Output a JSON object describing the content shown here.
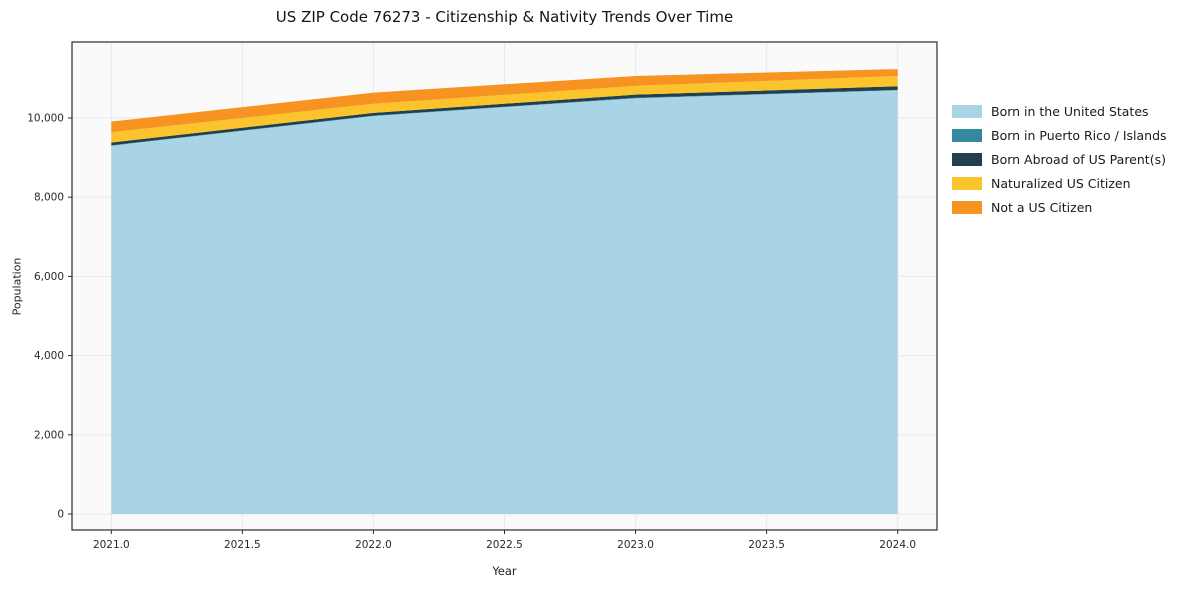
{
  "figure": {
    "title": "US ZIP Code 76273 - Citizenship & Nativity Trends Over Time",
    "xlabel": "Year",
    "ylabel": "Population"
  },
  "chart_data": {
    "type": "area",
    "stacked": true,
    "title": "US ZIP Code 76273 - Citizenship & Nativity Trends Over Time",
    "xlabel": "Year",
    "ylabel": "Population",
    "x": [
      2021,
      2022,
      2023,
      2024
    ],
    "series": [
      {
        "name": "Born in the United States",
        "color": "#a9d4e5",
        "values": [
          9300,
          10050,
          10500,
          10700
        ]
      },
      {
        "name": "Born in Puerto Rico / Islands",
        "color": "#35899e",
        "values": [
          10,
          10,
          10,
          10
        ]
      },
      {
        "name": "Born Abroad of US Parent(s)",
        "color": "#21404f",
        "values": [
          70,
          70,
          80,
          90
        ]
      },
      {
        "name": "Naturalized US Citizen",
        "color": "#fcc42c",
        "values": [
          260,
          230,
          220,
          260
        ]
      },
      {
        "name": "Not a US Citizen",
        "color": "#f79421",
        "values": [
          270,
          280,
          250,
          175
        ]
      }
    ],
    "totals_estimated": [
      9910,
      10640,
      11060,
      11235
    ],
    "xlim": [
      2020.85,
      2024.15
    ],
    "ylim": [
      -404,
      11919
    ],
    "x_ticks": [
      {
        "v": 2021.0,
        "label": "2021.0"
      },
      {
        "v": 2021.5,
        "label": "2021.5"
      },
      {
        "v": 2022.0,
        "label": "2022.0"
      },
      {
        "v": 2022.5,
        "label": "2022.5"
      },
      {
        "v": 2023.0,
        "label": "2023.0"
      },
      {
        "v": 2023.5,
        "label": "2023.5"
      },
      {
        "v": 2024.0,
        "label": "2024.0"
      }
    ],
    "y_ticks": [
      {
        "v": 0,
        "label": "0"
      },
      {
        "v": 2000,
        "label": "2,000"
      },
      {
        "v": 4000,
        "label": "4,000"
      },
      {
        "v": 6000,
        "label": "6,000"
      },
      {
        "v": 8000,
        "label": "8,000"
      },
      {
        "v": 10000,
        "label": "10,000"
      }
    ],
    "grid": true,
    "grid_color": "#e8e8ee",
    "plot_bg": "#fafafb",
    "spine_color": "#2a2a2a",
    "legend_position": "right"
  }
}
